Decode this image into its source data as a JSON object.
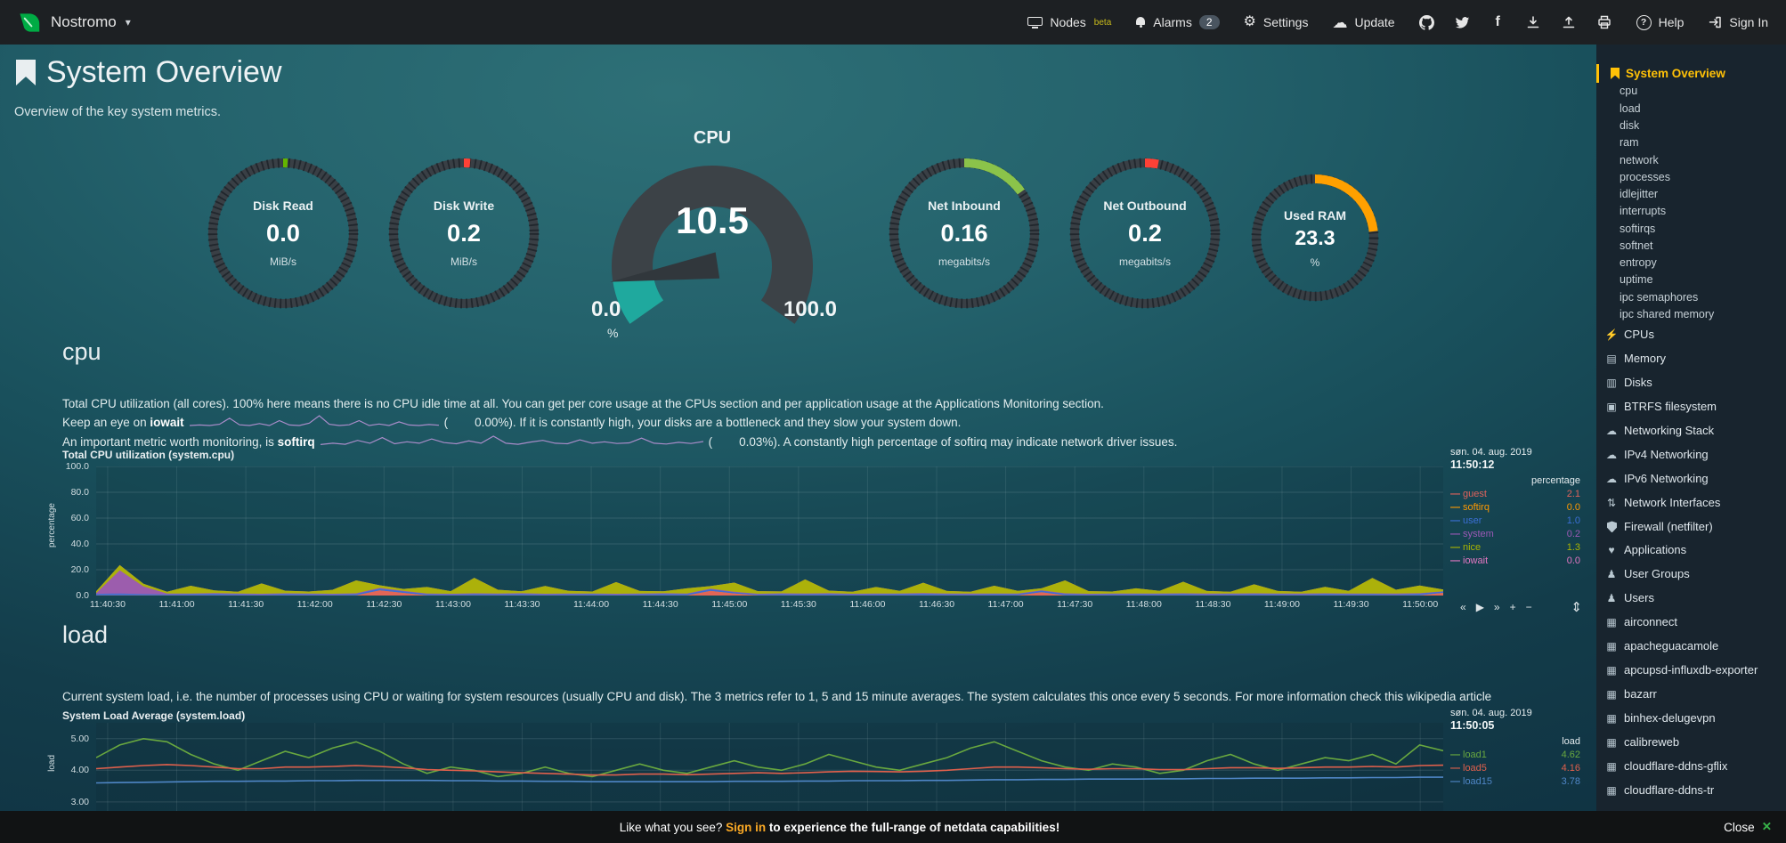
{
  "topnav": {
    "brand": "Nostromo",
    "nodes": {
      "label": "Nodes",
      "beta": "beta"
    },
    "alarms": {
      "label": "Alarms",
      "badge": "2"
    },
    "settings": "Settings",
    "update": "Update",
    "help": "Help",
    "signin": "Sign In",
    "icon_names": [
      "github-icon",
      "twitter-icon",
      "facebook-icon",
      "download-icon",
      "upload-icon",
      "print-icon"
    ]
  },
  "header": {
    "title": "System Overview",
    "subtitle": "Overview of the key system metrics."
  },
  "gauges": [
    {
      "id": "disk-read",
      "title": "Disk Read",
      "value": "0.0",
      "unit": "MiB/s",
      "color": "#63b500",
      "pct": 0.8
    },
    {
      "id": "disk-write",
      "title": "Disk Write",
      "value": "0.2",
      "unit": "MiB/s",
      "color": "#ff4136",
      "pct": 1.4
    },
    {
      "id": "net-inbound",
      "title": "Net Inbound",
      "value": "0.16",
      "unit": "megabits/s",
      "color": "#8bc34a",
      "pct": 15
    },
    {
      "id": "net-outbound",
      "title": "Net Outbound",
      "value": "0.2",
      "unit": "megabits/s",
      "color": "#ff4136",
      "pct": 3
    },
    {
      "id": "used-ram",
      "title": "Used RAM",
      "value": "23.3",
      "unit": "%",
      "color": "#ffa000",
      "pct": 23.3
    }
  ],
  "cpu_gauge": {
    "title": "CPU",
    "value": "10.5",
    "min": "0.0",
    "max": "100.0",
    "unit": "%",
    "pct": 10.5,
    "arc_color": "#1fa99e",
    "track_color": "#3c4247",
    "needle_color": "#31373c"
  },
  "cpu_section": {
    "heading": "cpu",
    "desc1": "Total CPU utilization (all cores). 100% here means there is no CPU idle time at all. You can get per core usage at the CPUs section and per application usage at the Applications Monitoring section.",
    "desc2_pre": "Keep an eye on ",
    "desc2_term": "iowait",
    "desc2_open": "(",
    "desc2_value": "0.00%",
    "desc2_rest": "). If it is constantly high, your disks are a bottleneck and they slow your system down.",
    "desc3_pre": "An important metric worth monitoring, is ",
    "desc3_term": "softirq",
    "desc3_open": "(",
    "desc3_value": "0.03%",
    "desc3_rest": "). A constantly high percentage of softirq may indicate network driver issues.",
    "sparkline1": [
      0,
      0.2,
      0,
      0.5,
      3,
      0.3,
      0,
      0.8,
      0,
      2,
      0.2,
      0,
      1,
      4,
      0.5,
      0,
      0.3,
      2,
      0,
      0.6,
      0,
      1.5,
      0.2,
      0,
      0.4,
      0.1
    ],
    "sparkline2": [
      0.5,
      1,
      0.6,
      2,
      1,
      3,
      0.8,
      1.5,
      1,
      2.5,
      1.2,
      0.8,
      1.8,
      1,
      3.5,
      1,
      0.6,
      1.4,
      2,
      1,
      0.8,
      2.2,
      1,
      1.5,
      0.9,
      1.1,
      2.8,
      1,
      0.7,
      1.3,
      0.9,
      1.6
    ],
    "sparkline_color": "#a98cc9"
  },
  "load_section": {
    "heading": "load",
    "desc": "Current system load, i.e. the number of processes using CPU or waiting for system resources (usually CPU and disk). The 3 metrics refer to 1, 5 and 15 minute averages. The system calculates this once every 5 seconds. For more information check this wikipedia article"
  },
  "chart_data": [
    {
      "id": "cpu",
      "type": "area",
      "stacked": true,
      "title": "Total CPU utilization (system.cpu)",
      "units": "percentage",
      "ylabel": "percentage",
      "date": "søn. 04. aug. 2019",
      "time": "11:50:12",
      "ylim": [
        0,
        100
      ],
      "yticks": [
        100,
        80,
        60,
        40,
        20,
        0
      ],
      "ytick_labels": [
        "100.0",
        "80.0",
        "60.0",
        "40.0",
        "20.0",
        "0.0"
      ],
      "xticks": [
        "11:40:30",
        "11:41:00",
        "11:41:30",
        "11:42:00",
        "11:42:30",
        "11:43:00",
        "11:43:30",
        "11:44:00",
        "11:44:30",
        "11:45:00",
        "11:45:30",
        "11:46:00",
        "11:46:30",
        "11:47:00",
        "11:47:30",
        "11:48:00",
        "11:48:30",
        "11:49:00",
        "11:49:30",
        "11:50:00"
      ],
      "grid": true,
      "legend_position": "right",
      "series": [
        {
          "name": "guest",
          "color": "#e0635c",
          "current": "2.1",
          "values": [
            0.1,
            0.1,
            0.1,
            0.1,
            0.1,
            0.1,
            0.1,
            0.1,
            0.1,
            0.1,
            0.1,
            0.1,
            4,
            2,
            0.1,
            0.1,
            0.1,
            0.1,
            0.1,
            0.1,
            0.1,
            0.1,
            0.1,
            0.1,
            0.1,
            0.1,
            3.5,
            1.5,
            0.1,
            0.1,
            0.1,
            0.1,
            0.1,
            0.1,
            0.1,
            0.1,
            0.1,
            0.1,
            0.1,
            0.1,
            2.5,
            0.1,
            0.1,
            0.1,
            0.1,
            0.1,
            0.1,
            0.1,
            0.1,
            0.1,
            0.1,
            0.1,
            0.1,
            0.1,
            0.1,
            0.1,
            0.1,
            2.1
          ]
        },
        {
          "name": "softirq",
          "color": "#ff9900",
          "current": "0.0",
          "values": [
            0,
            0,
            0,
            0,
            0,
            0,
            0,
            0,
            0,
            0,
            0,
            0,
            0,
            0,
            0,
            0,
            0,
            0,
            0,
            0,
            0,
            0,
            0,
            0,
            0,
            0,
            0,
            0,
            0,
            0,
            0,
            0,
            0,
            0,
            0,
            0,
            0,
            0,
            0,
            0,
            0,
            0,
            0,
            0,
            0,
            0,
            0,
            0,
            0,
            0,
            0,
            0,
            0,
            0,
            0,
            0,
            0,
            0
          ]
        },
        {
          "name": "user",
          "color": "#3b6fd6",
          "current": "1.0",
          "values": [
            1.2,
            1.5,
            1.0,
            0.9,
            1.1,
            1.3,
            1.0,
            0.8,
            1.2,
            1.0,
            0.9,
            1.1,
            1.4,
            1.2,
            1.0,
            0.9,
            1.1,
            1.0,
            1.2,
            0.9,
            1.0,
            1.1,
            0.8,
            1.0,
            1.2,
            1.1,
            1.3,
            1.0,
            0.9,
            1.1,
            1.0,
            1.2,
            0.9,
            1.0,
            1.1,
            1.3,
            1.0,
            0.9,
            1.1,
            1.0,
            1.2,
            1.1,
            0.9,
            1.0,
            1.1,
            1.0,
            1.2,
            0.9,
            1.0,
            1.1,
            1.0,
            0.9,
            1.2,
            1.0,
            1.1,
            0.9,
            1.3,
            1.0
          ]
        },
        {
          "name": "system",
          "color": "#9b59b6",
          "current": "0.2",
          "values": [
            0.5,
            18,
            6,
            0.5,
            0.4,
            0.5,
            0.4,
            0.5,
            0.4,
            0.5,
            0.4,
            0.5,
            0.5,
            0.4,
            0.5,
            0.4,
            0.5,
            0.4,
            0.5,
            0.4,
            0.5,
            0.4,
            0.5,
            0.4,
            0.5,
            0.4,
            0.5,
            0.5,
            0.4,
            0.5,
            0.4,
            0.5,
            0.4,
            0.5,
            0.4,
            0.5,
            0.4,
            0.5,
            0.4,
            0.5,
            0.4,
            0.5,
            0.4,
            0.5,
            0.4,
            0.5,
            0.4,
            0.5,
            0.4,
            0.5,
            0.4,
            0.5,
            0.4,
            0.5,
            0.4,
            0.5,
            0.4,
            0.2
          ]
        },
        {
          "name": "nice",
          "color": "#aab400",
          "current": "1.3",
          "values": [
            1.5,
            4,
            2,
            1.5,
            6,
            2,
            1.5,
            8,
            2,
            1.5,
            3,
            10,
            2,
            1.5,
            5,
            2,
            12,
            3,
            1.5,
            6,
            2,
            1.5,
            9,
            2,
            1.5,
            4,
            2,
            7,
            2,
            1.5,
            11,
            2,
            1.5,
            5,
            2,
            8,
            2,
            1.5,
            6,
            2,
            1.5,
            10,
            2,
            1.5,
            4,
            2,
            9,
            2,
            1.5,
            7,
            2,
            1.5,
            5,
            2,
            12,
            3,
            6,
            1.3
          ]
        },
        {
          "name": "iowait",
          "color": "#e377c2",
          "current": "0.0",
          "values": [
            0,
            0,
            0,
            0,
            0,
            0,
            0,
            0,
            0,
            0,
            0,
            0,
            0,
            0,
            0,
            0,
            0,
            0,
            0,
            0,
            0,
            0,
            0,
            0,
            0,
            0,
            0,
            0,
            0,
            0,
            0,
            0,
            0,
            0,
            0,
            0,
            0,
            0,
            0,
            0,
            0,
            0,
            0,
            0,
            0,
            0,
            0,
            0,
            0,
            0,
            0,
            0,
            0,
            0,
            0,
            0,
            0,
            0
          ]
        }
      ],
      "toolbox": [
        {
          "name": "pan-backward-icon",
          "glyph": "«"
        },
        {
          "name": "play-icon",
          "glyph": "▶"
        },
        {
          "name": "pan-forward-icon",
          "glyph": "»"
        },
        {
          "name": "zoom-in-icon",
          "glyph": "+"
        },
        {
          "name": "zoom-out-icon",
          "glyph": "−"
        }
      ],
      "resize_icon": "⇕"
    },
    {
      "id": "load",
      "type": "line",
      "stacked": false,
      "title": "System Load Average (system.load)",
      "units": "load",
      "ylabel": "load",
      "date": "søn. 04. aug. 2019",
      "time": "11:50:05",
      "ylim": [
        1.7,
        5.5
      ],
      "yticks": [
        5,
        4,
        3
      ],
      "ytick_labels": [
        "5.00",
        "4.00",
        "3.00"
      ],
      "xticks": [],
      "vgrid_count": 20,
      "grid": true,
      "legend_position": "right",
      "series": [
        {
          "name": "load1",
          "color": "#69a83f",
          "current": "4.62",
          "values": [
            4.4,
            4.8,
            5.0,
            4.9,
            4.5,
            4.2,
            4.0,
            4.3,
            4.6,
            4.4,
            4.7,
            4.9,
            4.6,
            4.2,
            3.9,
            4.1,
            4.0,
            3.8,
            3.9,
            4.1,
            3.9,
            3.8,
            4.0,
            4.2,
            4.0,
            3.9,
            4.1,
            4.3,
            4.1,
            4.0,
            4.2,
            4.5,
            4.3,
            4.1,
            4.0,
            4.2,
            4.4,
            4.7,
            4.9,
            4.6,
            4.3,
            4.1,
            4.0,
            4.2,
            4.1,
            3.9,
            4.0,
            4.3,
            4.5,
            4.2,
            4.0,
            4.2,
            4.4,
            4.3,
            4.5,
            4.2,
            4.8,
            4.62
          ]
        },
        {
          "name": "load5",
          "color": "#e0604c",
          "current": "4.16",
          "values": [
            4.05,
            4.1,
            4.15,
            4.18,
            4.15,
            4.1,
            4.05,
            4.05,
            4.1,
            4.1,
            4.12,
            4.15,
            4.12,
            4.08,
            4.02,
            4.0,
            3.98,
            3.95,
            3.92,
            3.9,
            3.88,
            3.85,
            3.85,
            3.88,
            3.88,
            3.86,
            3.88,
            3.9,
            3.92,
            3.9,
            3.92,
            3.95,
            3.97,
            3.96,
            3.95,
            3.97,
            4.0,
            4.05,
            4.1,
            4.1,
            4.08,
            4.05,
            4.03,
            4.05,
            4.05,
            4.02,
            4.02,
            4.05,
            4.08,
            4.08,
            4.06,
            4.08,
            4.1,
            4.1,
            4.12,
            4.1,
            4.15,
            4.16
          ]
        },
        {
          "name": "load15",
          "color": "#4f86c6",
          "current": "3.78",
          "values": [
            3.6,
            3.61,
            3.62,
            3.63,
            3.64,
            3.65,
            3.65,
            3.66,
            3.66,
            3.67,
            3.67,
            3.68,
            3.68,
            3.68,
            3.68,
            3.67,
            3.67,
            3.66,
            3.66,
            3.65,
            3.65,
            3.64,
            3.64,
            3.64,
            3.64,
            3.64,
            3.64,
            3.65,
            3.65,
            3.65,
            3.66,
            3.66,
            3.67,
            3.67,
            3.67,
            3.68,
            3.68,
            3.69,
            3.7,
            3.7,
            3.71,
            3.71,
            3.72,
            3.72,
            3.72,
            3.73,
            3.73,
            3.74,
            3.74,
            3.75,
            3.75,
            3.75,
            3.76,
            3.76,
            3.77,
            3.77,
            3.78,
            3.78
          ]
        }
      ]
    }
  ],
  "sidebar": {
    "active": {
      "label": "System Overview",
      "icon": "bookmark"
    },
    "sub_items": [
      "cpu",
      "load",
      "disk",
      "ram",
      "network",
      "processes",
      "idlejitter",
      "interrupts",
      "softirqs",
      "softnet",
      "entropy",
      "uptime",
      "ipc semaphores",
      "ipc shared memory"
    ],
    "sections": [
      {
        "label": "CPUs",
        "icon": "bolt"
      },
      {
        "label": "Memory",
        "icon": "memory"
      },
      {
        "label": "Disks",
        "icon": "disk"
      },
      {
        "label": "BTRFS filesystem",
        "icon": "folder"
      },
      {
        "label": "Networking Stack",
        "icon": "cloud"
      },
      {
        "label": "IPv4 Networking",
        "icon": "cloud"
      },
      {
        "label": "IPv6 Networking",
        "icon": "cloud"
      },
      {
        "label": "Network Interfaces",
        "icon": "interfaces"
      },
      {
        "label": "Firewall (netfilter)",
        "icon": "shield"
      },
      {
        "label": "Applications",
        "icon": "heart"
      },
      {
        "label": "User Groups",
        "icon": "users"
      },
      {
        "label": "Users",
        "icon": "user"
      },
      {
        "label": "airconnect",
        "icon": "grid"
      },
      {
        "label": "apacheguacamole",
        "icon": "grid"
      },
      {
        "label": "apcupsd-influxdb-exporter",
        "icon": "grid"
      },
      {
        "label": "bazarr",
        "icon": "grid"
      },
      {
        "label": "binhex-delugevpn",
        "icon": "grid"
      },
      {
        "label": "calibreweb",
        "icon": "grid"
      },
      {
        "label": "cloudflare-ddns-gflix",
        "icon": "grid"
      },
      {
        "label": "cloudflare-ddns-tr",
        "icon": "grid"
      }
    ]
  },
  "bottombar": {
    "pre": "Like what you see? ",
    "link": "Sign in",
    "post": " to experience the full-range of netdata capabilities!",
    "close": "Close",
    "close_icon": "✕",
    "close_icon_color": "#38b44a"
  }
}
